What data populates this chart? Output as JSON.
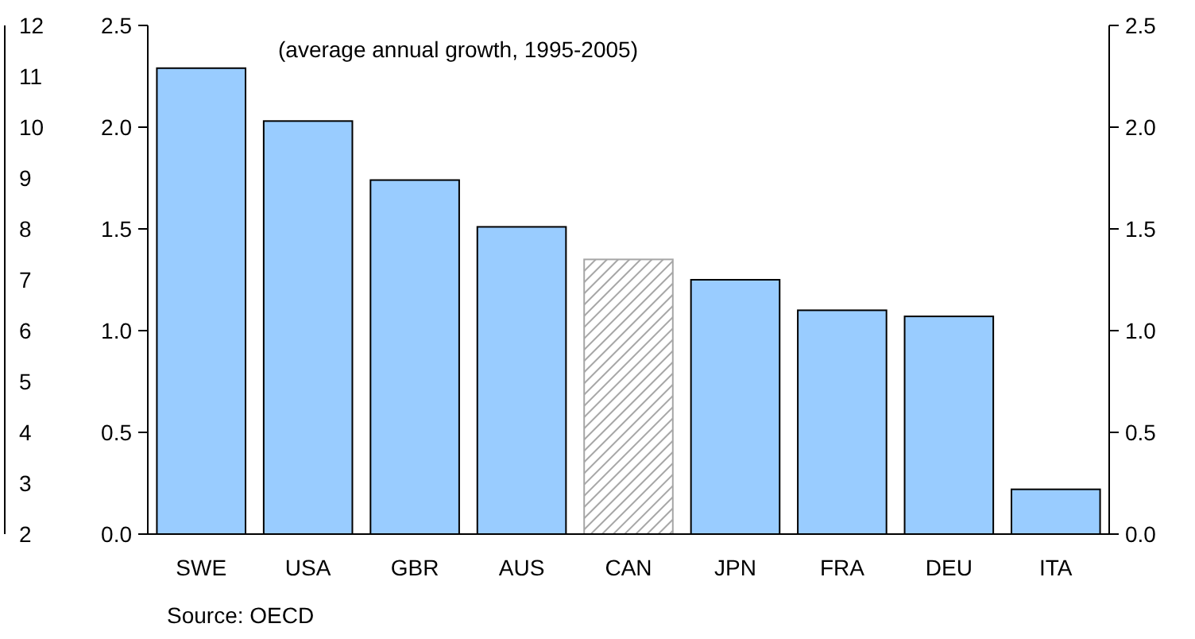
{
  "chart_data": {
    "type": "bar",
    "subtitle": "(average annual growth, 1995-2005)",
    "categories": [
      "SWE",
      "USA",
      "GBR",
      "AUS",
      "CAN",
      "JPN",
      "FRA",
      "DEU",
      "ITA"
    ],
    "values": [
      2.29,
      2.03,
      1.74,
      1.51,
      1.35,
      1.25,
      1.1,
      1.07,
      0.22
    ],
    "colors": [
      "#99ccff",
      "#99ccff",
      "#99ccff",
      "#99ccff",
      "#a6a6a6",
      "#99ccff",
      "#99ccff",
      "#99ccff",
      "#99ccff"
    ],
    "ylim": [
      0,
      2.5
    ],
    "yticks": [
      {
        "value": 0,
        "label": "0.0"
      },
      {
        "value": 0.5,
        "label": "0.5"
      },
      {
        "value": 1,
        "label": "1.0"
      },
      {
        "value": 1.5,
        "label": "1.5"
      },
      {
        "value": 2,
        "label": "2.0"
      },
      {
        "value": 2.5,
        "label": "2.5"
      }
    ],
    "y2lim": [
      0,
      2.5
    ],
    "y2ticks": [
      {
        "value": 0,
        "label": "0.0"
      },
      {
        "value": 0.5,
        "label": "0.5"
      },
      {
        "value": 1,
        "label": "1.0"
      },
      {
        "value": 1.5,
        "label": "1.5"
      },
      {
        "value": 2,
        "label": "2.0"
      },
      {
        "value": 2.5,
        "label": "2.5"
      }
    ],
    "y3lim": [
      2,
      12
    ],
    "y3ticks": [
      2,
      3,
      4,
      5,
      6,
      7,
      8,
      9,
      10,
      11,
      12
    ],
    "annotations": [
      "Source: OECD"
    ]
  }
}
